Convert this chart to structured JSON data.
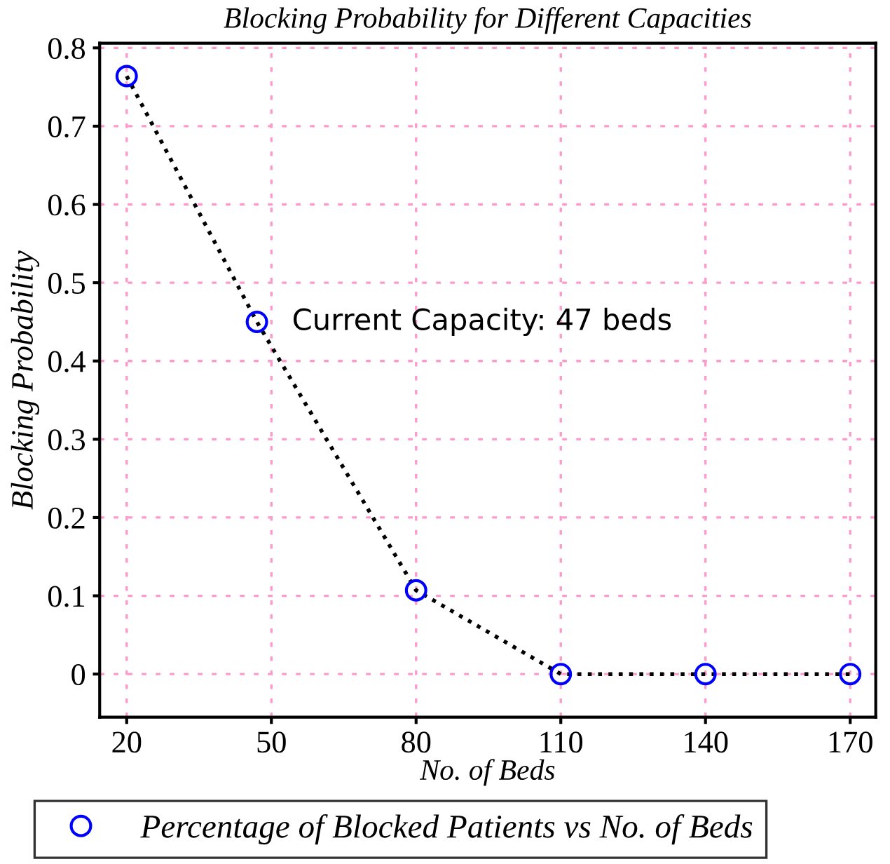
{
  "chart_data": {
    "type": "line",
    "title": "Blocking Probability for Different Capacities",
    "xlabel": "No. of Beds",
    "ylabel": "Blocking Probability",
    "x": [
      20,
      47,
      80,
      110,
      140,
      170
    ],
    "series": [
      {
        "name": "Percentage of Blocked Patients vs No. of Beds",
        "color": "#0000ff",
        "values": [
          0.764,
          0.45,
          0.107,
          0,
          0,
          0
        ]
      }
    ],
    "marker": "circle",
    "line_style": "dotted",
    "xlim": [
      14.4,
      175.3
    ],
    "ylim": [
      -0.055,
      0.806
    ],
    "xticks": [
      20,
      50,
      80,
      110,
      140,
      170
    ],
    "yticks": [
      0,
      0.1,
      0.2,
      0.3,
      0.4,
      0.5,
      0.6,
      0.7,
      0.8
    ],
    "grid": true,
    "legend": "bottom",
    "annotations": [
      {
        "text": "Current Capacity: 47 beds",
        "x": 47,
        "y": 0.45
      }
    ]
  }
}
